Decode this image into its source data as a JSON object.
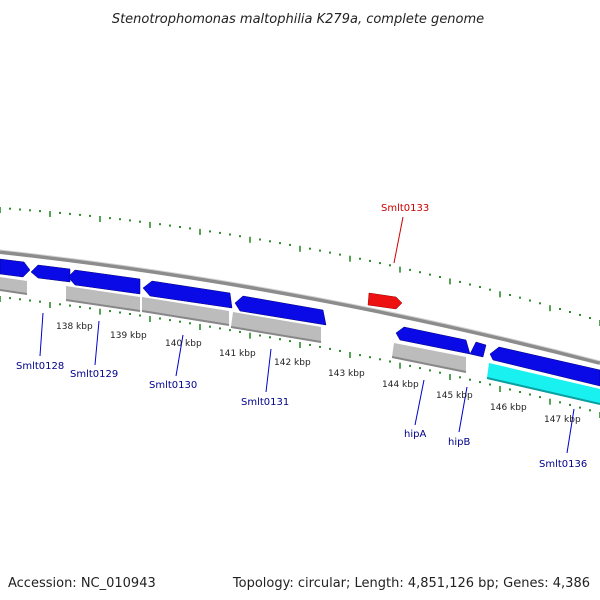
{
  "map": {
    "title": "Stenotrophomonas maltophilia K279a, complete genome",
    "accession": "Accession: NC_010943",
    "summary": "Topology: circular; Length: 4,851,126 bp; Genes: 4,386"
  },
  "colors": {
    "backbone": "#8c8c8c",
    "tick": "#2e8b2e",
    "cds_forward": "#0a0ae6",
    "cds_reverse": "#0a0ae6",
    "gene_grey": "#bcbcbc",
    "gene_cyan": "#19f0f0",
    "gene_red": "#ee1111",
    "label_blue": "#00008b",
    "label_red": "#cc0000"
  },
  "ticks": [
    {
      "label": "138 kbp"
    },
    {
      "label": "139 kbp"
    },
    {
      "label": "140 kbp"
    },
    {
      "label": "141 kbp"
    },
    {
      "label": "142 kbp"
    },
    {
      "label": "143 kbp"
    },
    {
      "label": "144 kbp"
    },
    {
      "label": "145 kbp"
    },
    {
      "label": "146 kbp"
    },
    {
      "label": "147 kbp"
    }
  ],
  "gene_labels": [
    {
      "name": "Smlt0128",
      "color": "blue"
    },
    {
      "name": "Smlt0129",
      "color": "blue"
    },
    {
      "name": "Smlt0130",
      "color": "blue"
    },
    {
      "name": "Smlt0131",
      "color": "blue"
    },
    {
      "name": "hipA",
      "color": "blue"
    },
    {
      "name": "hipB",
      "color": "blue"
    },
    {
      "name": "Smlt0136",
      "color": "blue"
    },
    {
      "name": "Smlt0133",
      "color": "red"
    }
  ]
}
